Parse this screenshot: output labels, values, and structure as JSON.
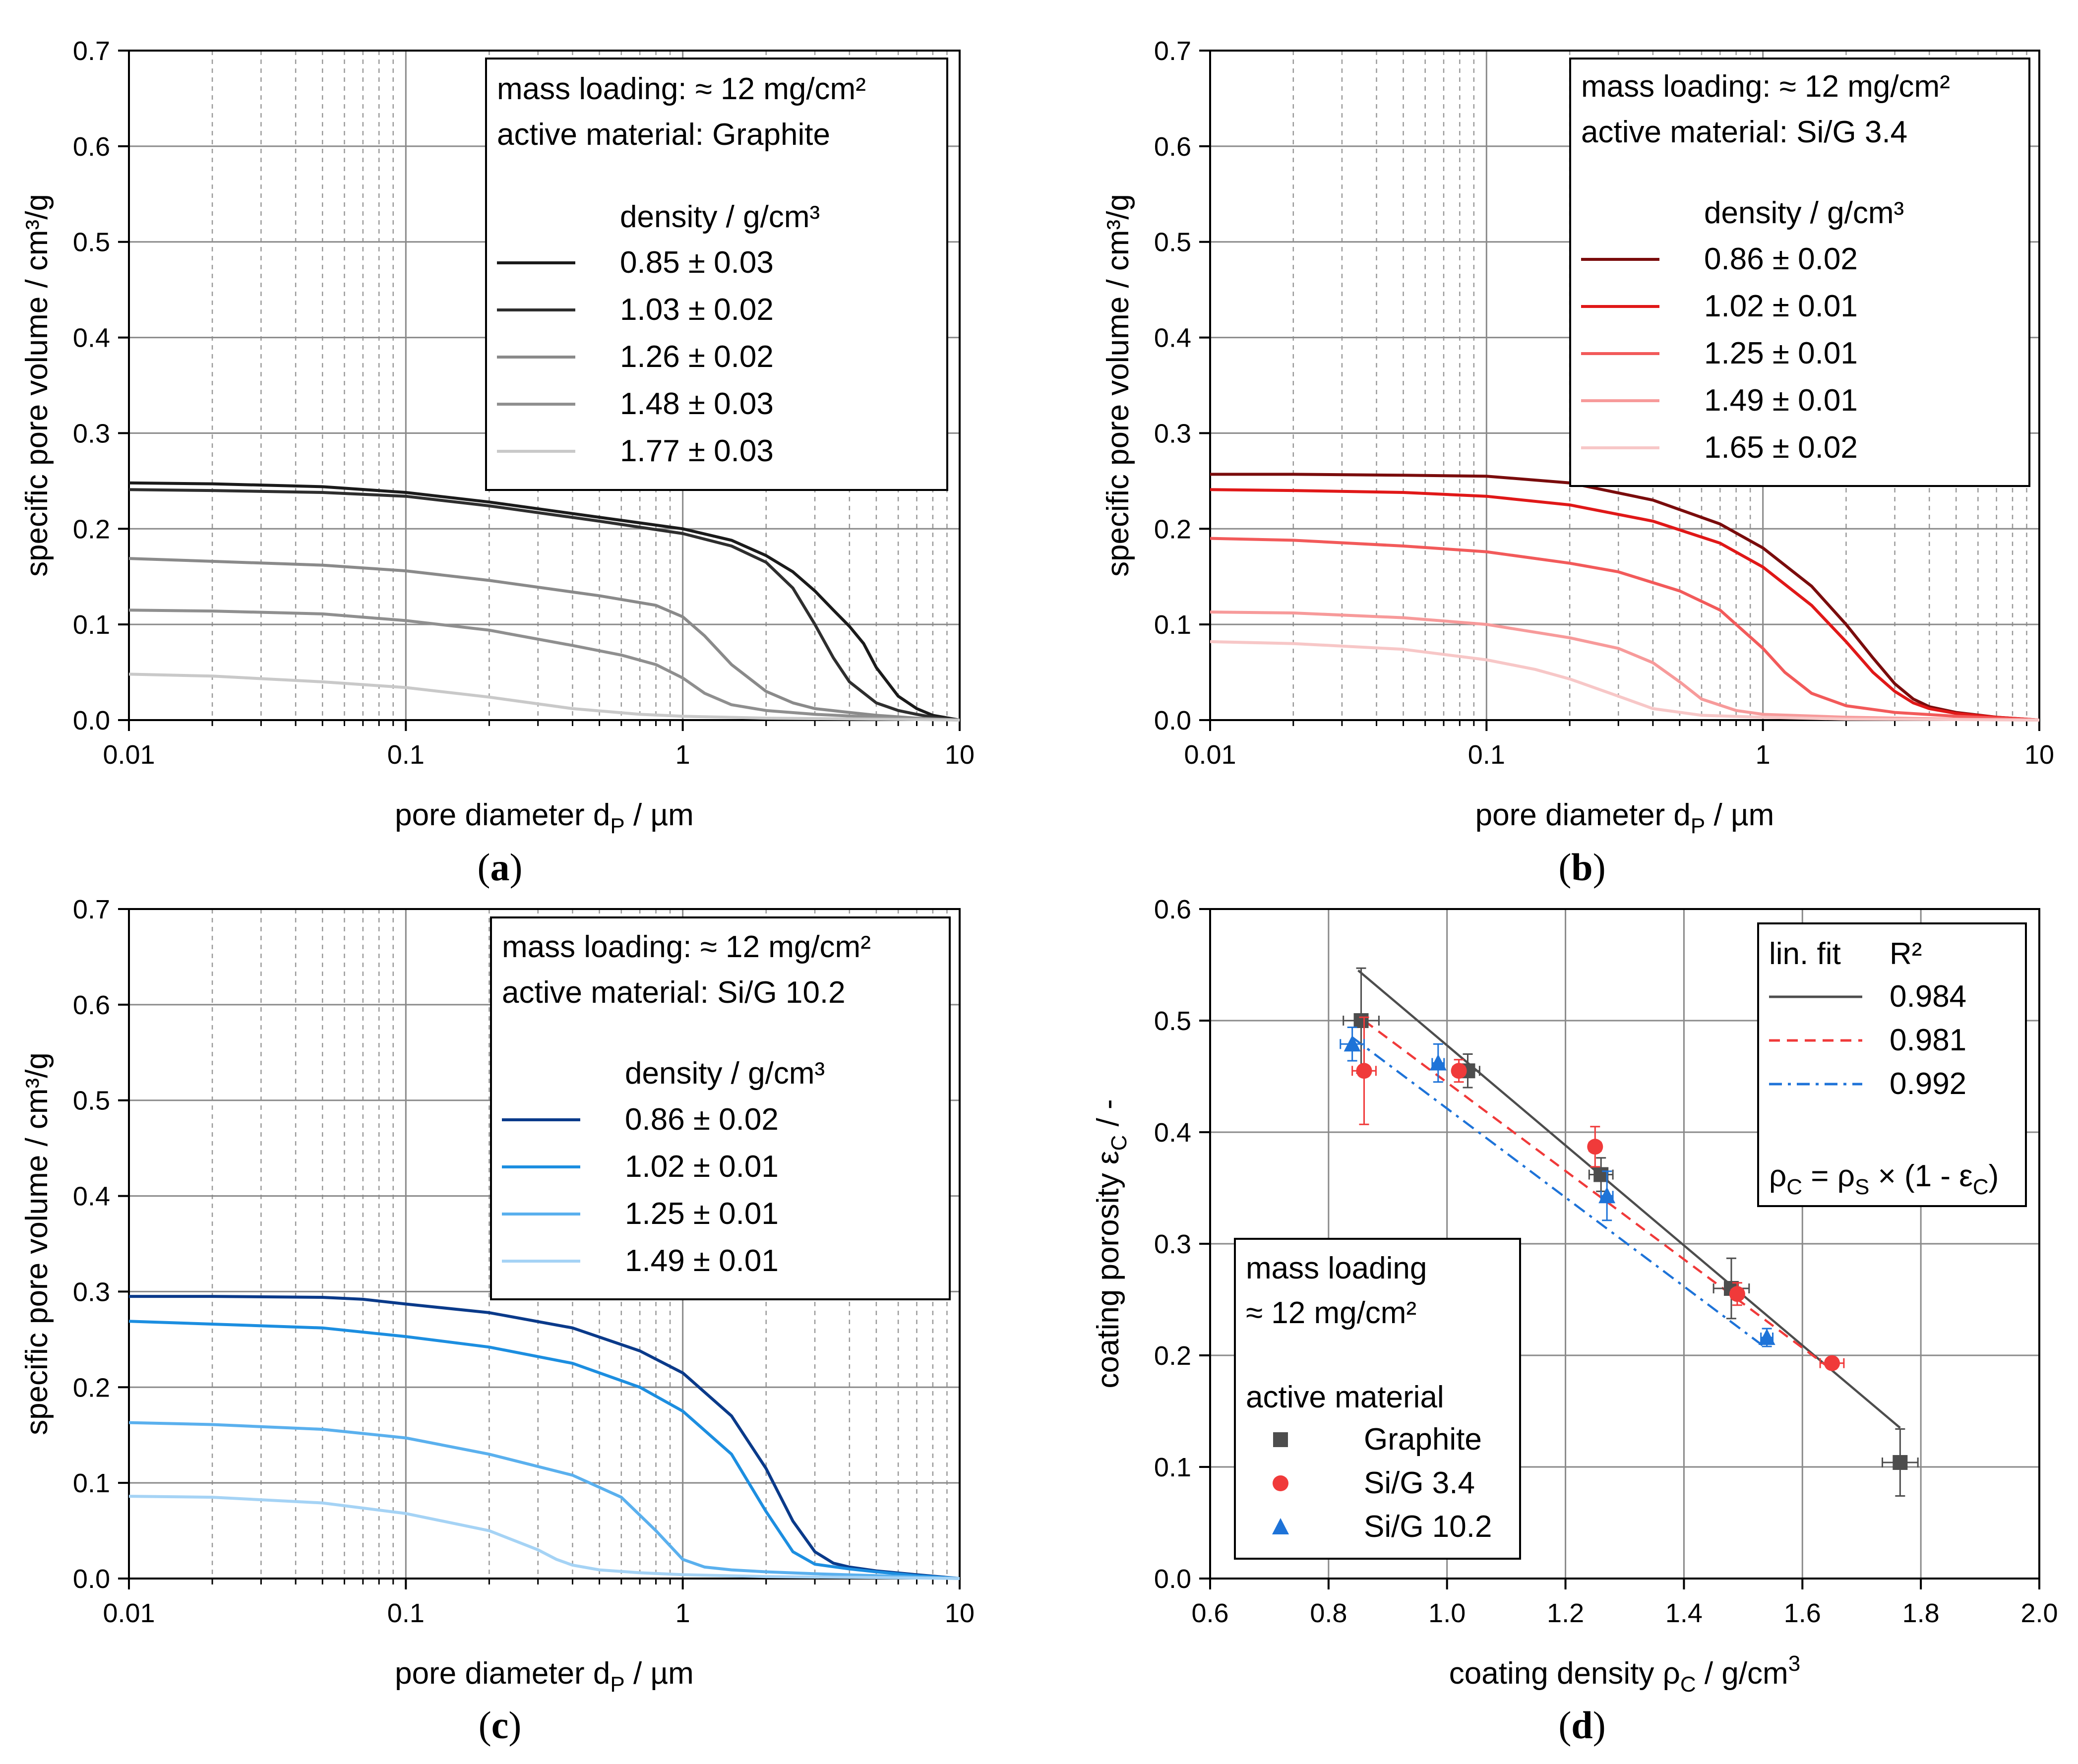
{
  "chart_data": [
    {
      "id": "a",
      "type": "line",
      "caption": "a",
      "xscale": "log",
      "xlim": [
        0.01,
        10
      ],
      "ylim": [
        0.0,
        0.7
      ],
      "xticks": [
        {
          "v": 0.01,
          "label": "0.01"
        },
        {
          "v": 0.1,
          "label": "0.1"
        },
        {
          "v": 1,
          "label": "1"
        },
        {
          "v": 10,
          "label": "10"
        }
      ],
      "yticks": [
        {
          "v": 0.0,
          "label": "0.0"
        },
        {
          "v": 0.1,
          "label": "0.1"
        },
        {
          "v": 0.2,
          "label": "0.2"
        },
        {
          "v": 0.3,
          "label": "0.3"
        },
        {
          "v": 0.4,
          "label": "0.4"
        },
        {
          "v": 0.5,
          "label": "0.5"
        },
        {
          "v": 0.6,
          "label": "0.6"
        },
        {
          "v": 0.7,
          "label": "0.7"
        }
      ],
      "xlabel": {
        "main": "pore diameter d",
        "sub": "P",
        "unit": "  /  µm"
      },
      "ylabel": "specific pore volume  /  cm³/g",
      "legend": {
        "lines": [
          "mass loading:   ≈ 12 mg/cm²",
          "active material:  Graphite"
        ],
        "header": "density  /  g/cm³"
      },
      "series": [
        {
          "name": "0.85 ± 0.03",
          "color": "#1a1a1a",
          "x": [
            0.01,
            0.02,
            0.05,
            0.1,
            0.2,
            0.5,
            1,
            1.5,
            2,
            2.5,
            3,
            3.5,
            4,
            4.5,
            5,
            6,
            7,
            8,
            10
          ],
          "y": [
            0.248,
            0.247,
            0.244,
            0.238,
            0.228,
            0.212,
            0.2,
            0.188,
            0.172,
            0.155,
            0.135,
            0.115,
            0.098,
            0.08,
            0.055,
            0.025,
            0.012,
            0.005,
            0.0
          ]
        },
        {
          "name": "1.03 ± 0.02",
          "color": "#2e2e2e",
          "x": [
            0.01,
            0.02,
            0.05,
            0.1,
            0.2,
            0.5,
            1,
            1.5,
            2,
            2.5,
            3,
            3.5,
            4,
            5,
            6,
            7,
            8,
            10
          ],
          "y": [
            0.241,
            0.24,
            0.238,
            0.234,
            0.224,
            0.208,
            0.195,
            0.182,
            0.165,
            0.138,
            0.1,
            0.065,
            0.04,
            0.018,
            0.01,
            0.006,
            0.003,
            0.0
          ]
        },
        {
          "name": "1.26 ± 0.02",
          "color": "#8a8a8a",
          "x": [
            0.01,
            0.02,
            0.05,
            0.1,
            0.2,
            0.5,
            0.8,
            1,
            1.2,
            1.5,
            2,
            2.5,
            3,
            4,
            5,
            7,
            10
          ],
          "y": [
            0.169,
            0.166,
            0.162,
            0.156,
            0.146,
            0.13,
            0.12,
            0.108,
            0.088,
            0.058,
            0.03,
            0.018,
            0.012,
            0.008,
            0.005,
            0.002,
            0.0
          ]
        },
        {
          "name": "1.48 ± 0.03",
          "color": "#8f8f8f",
          "x": [
            0.01,
            0.02,
            0.05,
            0.1,
            0.2,
            0.4,
            0.6,
            0.8,
            1,
            1.2,
            1.5,
            2,
            3,
            5,
            10
          ],
          "y": [
            0.115,
            0.114,
            0.111,
            0.104,
            0.094,
            0.078,
            0.068,
            0.058,
            0.044,
            0.028,
            0.016,
            0.01,
            0.006,
            0.003,
            0.0
          ]
        },
        {
          "name": "1.77 ± 0.03",
          "color": "#c9c9c9",
          "x": [
            0.01,
            0.02,
            0.05,
            0.1,
            0.2,
            0.4,
            0.7,
            1,
            2,
            5,
            10
          ],
          "y": [
            0.048,
            0.046,
            0.04,
            0.034,
            0.024,
            0.012,
            0.006,
            0.004,
            0.002,
            0.001,
            0.0
          ]
        }
      ]
    },
    {
      "id": "b",
      "type": "line",
      "caption": "b",
      "xscale": "log",
      "xlim": [
        0.01,
        10
      ],
      "ylim": [
        0.0,
        0.7
      ],
      "xticks": [
        {
          "v": 0.01,
          "label": "0.01"
        },
        {
          "v": 0.1,
          "label": "0.1"
        },
        {
          "v": 1,
          "label": "1"
        },
        {
          "v": 10,
          "label": "10"
        }
      ],
      "yticks": [
        {
          "v": 0.0,
          "label": "0.0"
        },
        {
          "v": 0.1,
          "label": "0.1"
        },
        {
          "v": 0.2,
          "label": "0.2"
        },
        {
          "v": 0.3,
          "label": "0.3"
        },
        {
          "v": 0.4,
          "label": "0.4"
        },
        {
          "v": 0.5,
          "label": "0.5"
        },
        {
          "v": 0.6,
          "label": "0.6"
        },
        {
          "v": 0.7,
          "label": "0.7"
        }
      ],
      "xlabel": {
        "main": "pore diameter d",
        "sub": "P",
        "unit": "  /  µm"
      },
      "ylabel": "specific pore volume  /  cm³/g",
      "legend": {
        "lines": [
          "mass loading:   ≈ 12 mg/cm²",
          "active material:  Si/G   3.4"
        ],
        "header": "density  /  g/cm³"
      },
      "series": [
        {
          "name": "0.86 ± 0.02",
          "color": "#7a0c0c",
          "x": [
            0.01,
            0.02,
            0.05,
            0.1,
            0.2,
            0.4,
            0.7,
            1,
            1.5,
            2,
            2.5,
            3,
            3.5,
            4,
            5,
            7,
            10
          ],
          "y": [
            0.257,
            0.257,
            0.256,
            0.255,
            0.248,
            0.23,
            0.205,
            0.18,
            0.14,
            0.1,
            0.065,
            0.038,
            0.022,
            0.014,
            0.008,
            0.003,
            0.0
          ]
        },
        {
          "name": "1.02 ± 0.01",
          "color": "#e01818",
          "x": [
            0.01,
            0.02,
            0.05,
            0.1,
            0.2,
            0.4,
            0.7,
            1,
            1.5,
            2,
            2.5,
            3,
            3.5,
            4,
            5,
            7,
            10
          ],
          "y": [
            0.241,
            0.24,
            0.238,
            0.234,
            0.225,
            0.208,
            0.185,
            0.16,
            0.12,
            0.082,
            0.05,
            0.03,
            0.018,
            0.012,
            0.007,
            0.003,
            0.0
          ]
        },
        {
          "name": "1.25 ± 0.01",
          "color": "#f25a5a",
          "x": [
            0.01,
            0.02,
            0.05,
            0.1,
            0.2,
            0.3,
            0.5,
            0.7,
            1,
            1.2,
            1.5,
            2,
            3,
            5,
            10
          ],
          "y": [
            0.19,
            0.188,
            0.182,
            0.176,
            0.164,
            0.155,
            0.135,
            0.115,
            0.075,
            0.05,
            0.028,
            0.015,
            0.008,
            0.004,
            0.0
          ]
        },
        {
          "name": "1.49 ± 0.01",
          "color": "#f79a9a",
          "x": [
            0.01,
            0.02,
            0.05,
            0.1,
            0.2,
            0.3,
            0.4,
            0.5,
            0.6,
            0.8,
            1,
            2,
            5,
            10
          ],
          "y": [
            0.113,
            0.112,
            0.107,
            0.1,
            0.086,
            0.075,
            0.06,
            0.04,
            0.022,
            0.01,
            0.006,
            0.003,
            0.001,
            0.0
          ]
        },
        {
          "name": "1.65 ± 0.02",
          "color": "#f7c7c7",
          "x": [
            0.01,
            0.02,
            0.05,
            0.1,
            0.15,
            0.2,
            0.3,
            0.4,
            0.6,
            1,
            2,
            5,
            10
          ],
          "y": [
            0.082,
            0.08,
            0.074,
            0.063,
            0.053,
            0.043,
            0.025,
            0.012,
            0.005,
            0.003,
            0.001,
            0.0005,
            0.0
          ]
        }
      ]
    },
    {
      "id": "c",
      "type": "line",
      "caption": "c",
      "xscale": "log",
      "xlim": [
        0.01,
        10
      ],
      "ylim": [
        0.0,
        0.7
      ],
      "xticks": [
        {
          "v": 0.01,
          "label": "0.01"
        },
        {
          "v": 0.1,
          "label": "0.1"
        },
        {
          "v": 1,
          "label": "1"
        },
        {
          "v": 10,
          "label": "10"
        }
      ],
      "yticks": [
        {
          "v": 0.0,
          "label": "0.0"
        },
        {
          "v": 0.1,
          "label": "0.1"
        },
        {
          "v": 0.2,
          "label": "0.2"
        },
        {
          "v": 0.3,
          "label": "0.3"
        },
        {
          "v": 0.4,
          "label": "0.4"
        },
        {
          "v": 0.5,
          "label": "0.5"
        },
        {
          "v": 0.6,
          "label": "0.6"
        },
        {
          "v": 0.7,
          "label": "0.7"
        }
      ],
      "xlabel": {
        "main": "pore diameter d",
        "sub": "P",
        "unit": "  /  µm"
      },
      "ylabel": "specific pore volume  /  cm³/g",
      "legend": {
        "lines": [
          "mass loading:   ≈ 12 mg/cm²",
          "active material:  Si/G 10.2"
        ],
        "header": "density  /  g/cm³"
      },
      "series": [
        {
          "name": "0.86 ± 0.02",
          "color": "#0a3a8a",
          "x": [
            0.01,
            0.02,
            0.05,
            0.07,
            0.1,
            0.2,
            0.4,
            0.7,
            1,
            1.5,
            2,
            2.5,
            3,
            3.5,
            4,
            5,
            7,
            10
          ],
          "y": [
            0.295,
            0.295,
            0.294,
            0.292,
            0.287,
            0.278,
            0.262,
            0.238,
            0.215,
            0.17,
            0.115,
            0.06,
            0.028,
            0.016,
            0.012,
            0.008,
            0.004,
            0.0
          ]
        },
        {
          "name": "1.02 ± 0.01",
          "color": "#1c8ee0",
          "x": [
            0.01,
            0.02,
            0.05,
            0.1,
            0.2,
            0.4,
            0.7,
            1,
            1.5,
            2,
            2.5,
            3,
            4,
            5,
            7,
            10
          ],
          "y": [
            0.269,
            0.266,
            0.262,
            0.253,
            0.242,
            0.225,
            0.2,
            0.175,
            0.13,
            0.07,
            0.028,
            0.015,
            0.01,
            0.007,
            0.003,
            0.0
          ]
        },
        {
          "name": "1.25 ± 0.01",
          "color": "#5ab0ee",
          "x": [
            0.01,
            0.02,
            0.05,
            0.1,
            0.2,
            0.4,
            0.6,
            0.8,
            1,
            1.2,
            1.5,
            2,
            3,
            5,
            10
          ],
          "y": [
            0.163,
            0.161,
            0.156,
            0.147,
            0.13,
            0.108,
            0.085,
            0.05,
            0.02,
            0.012,
            0.009,
            0.007,
            0.005,
            0.003,
            0.0
          ]
        },
        {
          "name": "1.49 ± 0.01",
          "color": "#a5d3f5",
          "x": [
            0.01,
            0.02,
            0.05,
            0.1,
            0.2,
            0.3,
            0.35,
            0.4,
            0.5,
            0.7,
            1,
            2,
            5,
            10
          ],
          "y": [
            0.086,
            0.085,
            0.079,
            0.068,
            0.05,
            0.03,
            0.02,
            0.014,
            0.009,
            0.006,
            0.004,
            0.002,
            0.001,
            0.0
          ]
        }
      ]
    },
    {
      "id": "d",
      "type": "scatter",
      "caption": "d",
      "xscale": "linear",
      "xlim": [
        0.6,
        2.0
      ],
      "ylim": [
        0.0,
        0.6
      ],
      "xticks": [
        {
          "v": 0.6,
          "label": "0.6"
        },
        {
          "v": 0.8,
          "label": "0.8"
        },
        {
          "v": 1.0,
          "label": "1.0"
        },
        {
          "v": 1.2,
          "label": "1.2"
        },
        {
          "v": 1.4,
          "label": "1.4"
        },
        {
          "v": 1.6,
          "label": "1.6"
        },
        {
          "v": 1.8,
          "label": "1.8"
        },
        {
          "v": 2.0,
          "label": "2.0"
        }
      ],
      "yticks": [
        {
          "v": 0.0,
          "label": "0.0"
        },
        {
          "v": 0.1,
          "label": "0.1"
        },
        {
          "v": 0.2,
          "label": "0.2"
        },
        {
          "v": 0.3,
          "label": "0.3"
        },
        {
          "v": 0.4,
          "label": "0.4"
        },
        {
          "v": 0.5,
          "label": "0.5"
        },
        {
          "v": 0.6,
          "label": "0.6"
        }
      ],
      "xlabel": {
        "main": "coating density ρ",
        "sub": "C",
        "unit": "  /  g/cm",
        "sup": "3"
      },
      "ylabel": {
        "main": "coating porosity ε",
        "sub": "C",
        "unit": "  /  -"
      },
      "fit_legend": {
        "header_left": "lin. fit",
        "header_right": "R²",
        "entries": [
          {
            "r2": "0.984",
            "color": "#4d4d4d",
            "dash": "solid"
          },
          {
            "r2": "0.981",
            "color": "#f03a3a",
            "dash": "dashed"
          },
          {
            "r2": "0.992",
            "color": "#1e73d8",
            "dash": "dashdot"
          }
        ],
        "formula": {
          "p1": "ρ",
          "s1": "C",
          "p2": " = ρ",
          "s2": "S",
          "p3": " × (1 - ε",
          "s3": "C",
          "p4": ")"
        }
      },
      "marker_legend": {
        "line1": "mass loading",
        "line2": "≈ 12 mg/cm²",
        "line3": "active material"
      },
      "series": [
        {
          "name": "Graphite",
          "marker": "square",
          "color": "#4d4d4d",
          "x": [
            0.855,
            1.035,
            1.26,
            1.48,
            1.765
          ],
          "y": [
            0.5,
            0.455,
            0.362,
            0.26,
            0.104
          ],
          "xerr": [
            0.03,
            0.02,
            0.02,
            0.03,
            0.03
          ],
          "yerr": [
            0.047,
            0.015,
            0.015,
            0.027,
            0.03
          ],
          "fit": {
            "x": [
              0.85,
              1.765
            ],
            "y": [
              0.545,
              0.135
            ]
          }
        },
        {
          "name": "Si/G   3.4",
          "marker": "circle",
          "color": "#f03a3a",
          "x": [
            0.86,
            1.02,
            1.25,
            1.49,
            1.65
          ],
          "y": [
            0.455,
            0.455,
            0.387,
            0.255,
            0.193
          ],
          "xerr": [
            0.02,
            0.01,
            0.01,
            0.01,
            0.02
          ],
          "yerr": [
            0.048,
            0.01,
            0.018,
            0.01,
            0.005
          ],
          "fit": {
            "x": [
              0.86,
              1.65
            ],
            "y": [
              0.5,
              0.187
            ]
          }
        },
        {
          "name": "Si/G 10.2",
          "marker": "triangle",
          "color": "#1e73d8",
          "x": [
            0.84,
            0.985,
            1.27,
            1.54
          ],
          "y": [
            0.479,
            0.462,
            0.343,
            0.216
          ],
          "xerr": [
            0.02,
            0.01,
            0.01,
            0.01
          ],
          "yerr": [
            0.015,
            0.017,
            0.022,
            0.008
          ],
          "fit": {
            "x": [
              0.84,
              1.54
            ],
            "y": [
              0.485,
              0.206
            ]
          }
        }
      ]
    }
  ]
}
